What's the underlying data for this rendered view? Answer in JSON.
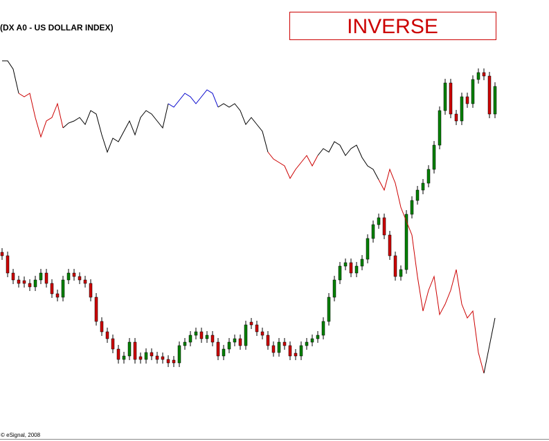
{
  "chart_data": {
    "type": "candlestick-overlay",
    "title": "(DX A0 - US DOLLAR INDEX)",
    "annotation": "INVERSE",
    "footer": "© eSignal, 2008",
    "xlim": [
      0,
      89
    ],
    "ylim": [
      0,
      600
    ],
    "line": [
      {
        "color": "#000000",
        "start": 0,
        "values": [
          512,
          512,
          500,
          465
        ]
      },
      {
        "color": "#cc0000",
        "start": 3,
        "values": [
          465,
          460,
          465,
          430,
          402,
          425,
          430,
          450,
          415
        ]
      },
      {
        "color": "#000000",
        "start": 11,
        "values": [
          415,
          422,
          425,
          430,
          420,
          440,
          435,
          405,
          380,
          400,
          395,
          410,
          425,
          405,
          430,
          440,
          435,
          425,
          415,
          450
        ]
      },
      {
        "color": "#0000cc",
        "start": 30,
        "values": [
          450,
          445,
          455,
          465,
          460,
          450,
          460,
          470,
          465,
          445
        ]
      },
      {
        "color": "#000000",
        "start": 39,
        "values": [
          445,
          450,
          445,
          450,
          440,
          420,
          430,
          420,
          410,
          380
        ]
      },
      {
        "color": "#cc0000",
        "start": 48,
        "values": [
          380,
          370,
          365,
          360,
          342,
          355,
          365,
          375,
          360,
          375
        ]
      },
      {
        "color": "#000000",
        "start": 57,
        "values": [
          375,
          385,
          380,
          395,
          390,
          375,
          385,
          390,
          372,
          360,
          355,
          340
        ]
      },
      {
        "color": "#cc0000",
        "start": 68,
        "values": [
          340,
          325,
          355,
          335,
          300,
          280,
          260,
          200,
          150,
          180,
          200,
          145,
          160,
          180,
          210,
          160,
          140,
          150,
          90,
          60
        ]
      },
      {
        "color": "#000000",
        "start": 87,
        "values": [
          60,
          100,
          140
        ]
      }
    ],
    "candles": {
      "up_color": "#008000",
      "down_color": "#cc0000",
      "wick_color": "#000000",
      "open": [
        235,
        230,
        205,
        195,
        194,
        190,
        185,
        195,
        205,
        190,
        175,
        170,
        195,
        205,
        200,
        195,
        190,
        170,
        135,
        120,
        110,
        95,
        80,
        85,
        105,
        84,
        80,
        90,
        85,
        84,
        80,
        79,
        75,
        100,
        105,
        115,
        120,
        110,
        115,
        105,
        85,
        95,
        105,
        110,
        100,
        134,
        130,
        120,
        115,
        100,
        90,
        105,
        100,
        89,
        85,
        100,
        105,
        110,
        115,
        135,
        170,
        195,
        215,
        220,
        205,
        215,
        225,
        255,
        275,
        285,
        260,
        230,
        200,
        210,
        290,
        310,
        325,
        335,
        355,
        390,
        440,
        480,
        435,
        425,
        460,
        450,
        485,
        495,
        490,
        435
      ],
      "high": [
        241,
        236,
        211,
        201,
        200,
        196,
        201,
        211,
        211,
        196,
        181,
        201,
        211,
        211,
        206,
        201,
        196,
        176,
        141,
        126,
        116,
        101,
        91,
        111,
        111,
        90,
        96,
        96,
        91,
        90,
        86,
        85,
        106,
        111,
        121,
        126,
        126,
        121,
        121,
        111,
        101,
        111,
        116,
        116,
        136,
        140,
        136,
        126,
        121,
        106,
        111,
        111,
        106,
        95,
        106,
        111,
        116,
        121,
        141,
        176,
        201,
        221,
        226,
        226,
        221,
        231,
        261,
        281,
        291,
        291,
        266,
        236,
        216,
        296,
        316,
        331,
        341,
        361,
        396,
        446,
        486,
        486,
        441,
        466,
        466,
        491,
        501,
        501,
        496,
        481
      ],
      "low": [
        224,
        199,
        189,
        184,
        184,
        179,
        179,
        189,
        184,
        169,
        164,
        164,
        189,
        194,
        189,
        184,
        164,
        129,
        114,
        104,
        89,
        74,
        74,
        79,
        74,
        74,
        74,
        79,
        74,
        74,
        69,
        69,
        69,
        94,
        99,
        109,
        104,
        104,
        99,
        79,
        79,
        89,
        99,
        94,
        94,
        124,
        114,
        109,
        94,
        84,
        84,
        94,
        79,
        79,
        79,
        94,
        99,
        104,
        109,
        129,
        164,
        189,
        209,
        199,
        199,
        209,
        219,
        249,
        269,
        254,
        224,
        194,
        194,
        204,
        284,
        304,
        319,
        329,
        349,
        384,
        434,
        429,
        419,
        419,
        444,
        444,
        479,
        484,
        429,
        429
      ],
      "close": [
        230,
        205,
        195,
        190,
        190,
        185,
        195,
        205,
        190,
        175,
        170,
        195,
        205,
        200,
        195,
        190,
        170,
        135,
        120,
        110,
        95,
        80,
        85,
        105,
        80,
        80,
        90,
        85,
        80,
        80,
        75,
        75,
        100,
        105,
        115,
        120,
        110,
        115,
        105,
        85,
        95,
        105,
        110,
        100,
        130,
        130,
        120,
        115,
        100,
        90,
        105,
        100,
        85,
        85,
        100,
        105,
        110,
        115,
        135,
        170,
        195,
        215,
        220,
        205,
        215,
        225,
        255,
        275,
        285,
        260,
        230,
        200,
        210,
        290,
        310,
        325,
        335,
        355,
        390,
        440,
        480,
        435,
        425,
        460,
        450,
        485,
        495,
        490,
        435,
        475
      ]
    }
  }
}
